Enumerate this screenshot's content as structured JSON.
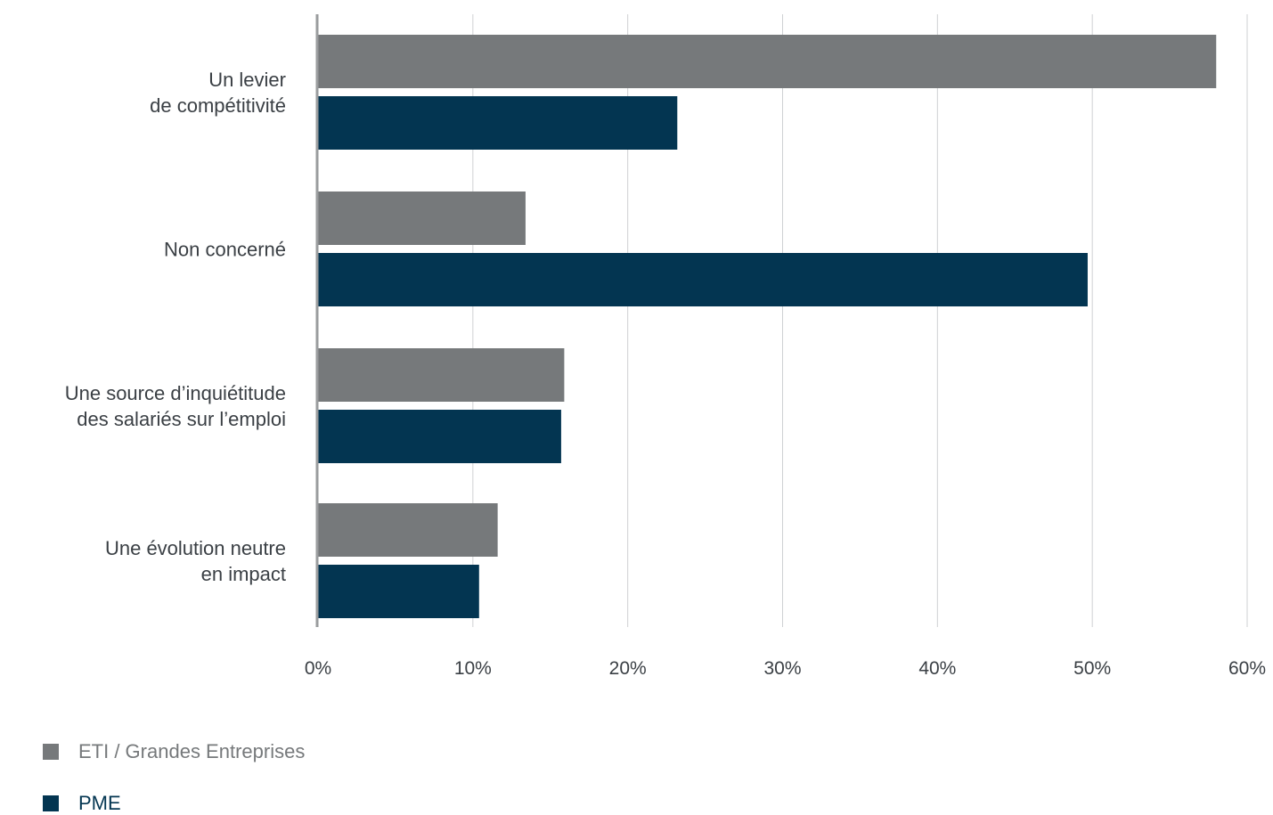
{
  "chart_data": {
    "type": "bar",
    "orientation": "horizontal",
    "categories": [
      [
        "Un levier",
        "de compétitivité"
      ],
      [
        "Non concerné"
      ],
      [
        "Une source d’inquiétitude",
        "des salariés sur l’emploi"
      ],
      [
        "Une évolution neutre",
        "en impact"
      ]
    ],
    "series": [
      {
        "name": "ETI / Grandes Entreprises",
        "color": "#76797b",
        "values": [
          58,
          13.4,
          15.9,
          11.6
        ]
      },
      {
        "name": "PME",
        "color": "#033551",
        "values": [
          23.2,
          49.7,
          15.7,
          10.4
        ]
      }
    ],
    "xlim": [
      0,
      60
    ],
    "xticks": [
      "0%",
      "10%",
      "20%",
      "30%",
      "40%",
      "50%",
      "60%"
    ],
    "grid": true,
    "legend_position": "bottom-left"
  }
}
